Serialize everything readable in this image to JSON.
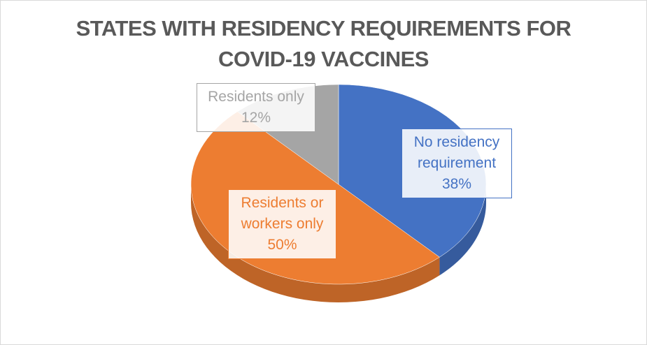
{
  "chart_data": {
    "type": "pie",
    "title": "STATES WITH RESIDENCY REQUIREMENTS FOR COVID-19 VACCINES",
    "categories": [
      "No residency requirement",
      "Residents or workers only",
      "Residents only"
    ],
    "values": [
      38,
      50,
      12
    ],
    "value_labels": [
      "38%",
      "50%",
      "12%"
    ],
    "colors": [
      "#4472c4",
      "#ed7d31",
      "#a5a5a5"
    ]
  }
}
